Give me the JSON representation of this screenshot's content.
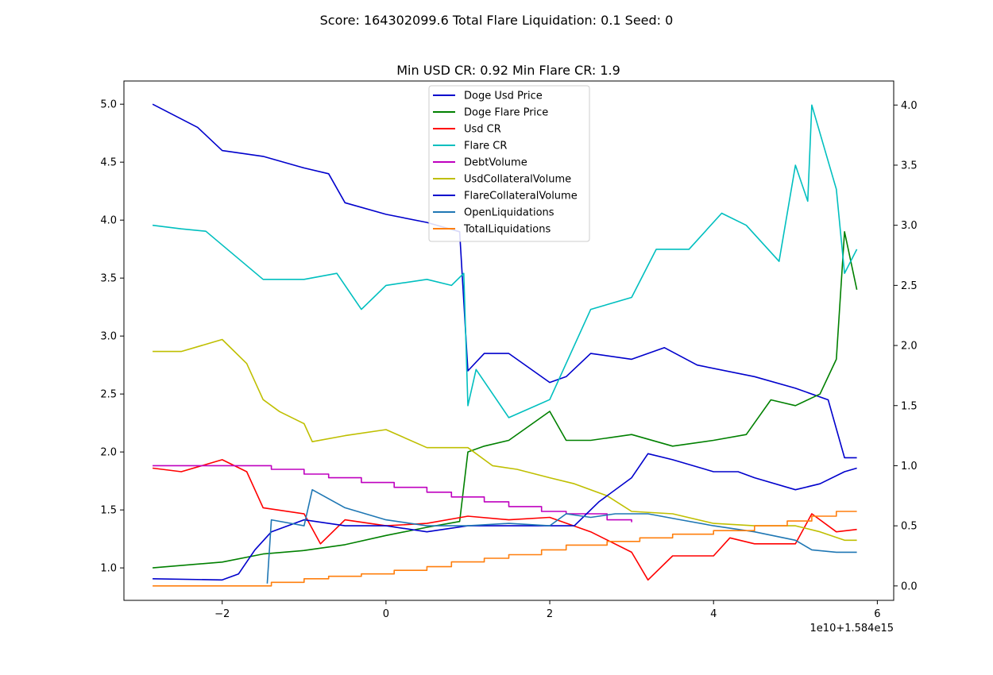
{
  "suptitle": "Score: 164302099.6 Total Flare Liquidation: 0.1 Seed: 0",
  "chart_data": {
    "type": "line",
    "title": "Min USD CR: 0.92 Min Flare CR: 1.9",
    "x_offset_label": "1e10+1.584e15",
    "xlim": [
      -3.2,
      6.2
    ],
    "ylim_left": [
      0.72,
      5.2
    ],
    "ylim_right": [
      -0.12,
      4.2
    ],
    "x_ticks": [
      -2,
      0,
      2,
      4,
      6
    ],
    "y_ticks_left": [
      1.0,
      1.5,
      2.0,
      2.5,
      3.0,
      3.5,
      4.0,
      4.5,
      5.0
    ],
    "y_ticks_right": [
      0.0,
      0.5,
      1.0,
      1.5,
      2.0,
      2.5,
      3.0,
      3.5,
      4.0
    ],
    "legend_position": "upper center",
    "series": [
      {
        "name": "Doge Usd Price",
        "color": "#0000cc",
        "axis": "left",
        "x": [
          -2.85,
          -2.3,
          -2.0,
          -1.5,
          -1.0,
          -0.7,
          -0.5,
          0.0,
          0.5,
          0.9,
          1.0,
          1.2,
          1.5,
          2.0,
          2.2,
          2.5,
          3.0,
          3.4,
          3.8,
          4.5,
          5.0,
          5.4,
          5.6,
          5.75
        ],
        "y": [
          5.0,
          4.8,
          4.6,
          4.55,
          4.45,
          4.4,
          4.15,
          4.05,
          3.98,
          3.9,
          2.7,
          2.85,
          2.85,
          2.6,
          2.65,
          2.85,
          2.8,
          2.9,
          2.75,
          2.65,
          2.55,
          2.45,
          1.95,
          1.95
        ]
      },
      {
        "name": "Doge Flare Price",
        "color": "#008000",
        "axis": "left",
        "x": [
          -2.85,
          -2.0,
          -1.5,
          -1.0,
          -0.5,
          0.0,
          0.5,
          0.9,
          1.0,
          1.2,
          1.5,
          2.0,
          2.2,
          2.5,
          3.0,
          3.5,
          4.0,
          4.4,
          4.7,
          5.0,
          5.3,
          5.5,
          5.6,
          5.75
        ],
        "y": [
          1.0,
          1.05,
          1.12,
          1.15,
          1.2,
          1.28,
          1.35,
          1.4,
          2.0,
          2.05,
          2.1,
          2.35,
          2.1,
          2.1,
          2.15,
          2.05,
          2.1,
          2.15,
          2.45,
          2.4,
          2.5,
          2.8,
          3.9,
          3.4
        ]
      },
      {
        "name": "Usd CR",
        "color": "#ff0000",
        "axis": "right",
        "x": [
          -2.85,
          -2.5,
          -2.0,
          -1.7,
          -1.5,
          -1.0,
          -0.8,
          -0.5,
          0.0,
          0.5,
          1.0,
          1.5,
          2.0,
          2.5,
          3.0,
          3.2,
          3.5,
          4.0,
          4.2,
          4.5,
          5.0,
          5.2,
          5.5,
          5.75
        ],
        "y": [
          0.98,
          0.95,
          1.05,
          0.95,
          0.65,
          0.6,
          0.35,
          0.55,
          0.5,
          0.52,
          0.58,
          0.55,
          0.57,
          0.45,
          0.28,
          0.05,
          0.25,
          0.25,
          0.4,
          0.35,
          0.35,
          0.6,
          0.45,
          0.47
        ]
      },
      {
        "name": "Flare CR",
        "color": "#00bfbf",
        "axis": "right",
        "x": [
          -2.85,
          -2.5,
          -2.2,
          -1.5,
          -1.0,
          -0.6,
          -0.3,
          0.0,
          0.5,
          0.8,
          0.95,
          1.0,
          1.1,
          1.5,
          2.0,
          2.5,
          3.0,
          3.3,
          3.7,
          4.1,
          4.4,
          4.8,
          5.0,
          5.15,
          5.2,
          5.5,
          5.6,
          5.75
        ],
        "y": [
          3.0,
          2.97,
          2.95,
          2.55,
          2.55,
          2.6,
          2.3,
          2.5,
          2.55,
          2.5,
          2.6,
          1.5,
          1.8,
          1.4,
          1.55,
          2.3,
          2.4,
          2.8,
          2.8,
          3.1,
          3.0,
          2.7,
          3.5,
          3.2,
          4.0,
          3.3,
          2.6,
          2.8
        ]
      },
      {
        "name": "DebtVolume",
        "color": "#bf00bf",
        "axis": "right",
        "step": true,
        "x": [
          -2.85,
          -2.0,
          -1.4,
          -1.0,
          -0.7,
          -0.3,
          0.1,
          0.5,
          0.8,
          1.2,
          1.5,
          1.9,
          2.2,
          2.7,
          3.0
        ],
        "y": [
          1.0,
          1.0,
          0.97,
          0.93,
          0.9,
          0.86,
          0.82,
          0.78,
          0.74,
          0.7,
          0.66,
          0.62,
          0.6,
          0.55,
          0.53
        ]
      },
      {
        "name": "UsdCollateralVolume",
        "color": "#bfbf00",
        "axis": "right",
        "x": [
          -2.85,
          -2.5,
          -2.0,
          -1.7,
          -1.5,
          -1.3,
          -1.0,
          -0.9,
          -0.5,
          0.0,
          0.5,
          1.0,
          1.3,
          1.6,
          2.0,
          2.3,
          2.7,
          3.0,
          3.5,
          4.0,
          4.5,
          5.0,
          5.3,
          5.6,
          5.75
        ],
        "y": [
          1.95,
          1.95,
          2.05,
          1.85,
          1.55,
          1.45,
          1.35,
          1.2,
          1.25,
          1.3,
          1.15,
          1.15,
          1.0,
          0.97,
          0.9,
          0.85,
          0.75,
          0.62,
          0.6,
          0.52,
          0.5,
          0.5,
          0.45,
          0.38,
          0.38
        ]
      },
      {
        "name": "FlareCollateralVolume",
        "color": "#0000cc",
        "axis": "right",
        "x": [
          -2.85,
          -2.0,
          -1.8,
          -1.6,
          -1.4,
          -1.0,
          -0.5,
          0.0,
          0.5,
          1.0,
          1.5,
          2.0,
          2.3,
          2.6,
          3.0,
          3.2,
          3.5,
          4.0,
          4.3,
          4.5,
          5.0,
          5.3,
          5.6,
          5.75
        ],
        "y": [
          0.06,
          0.05,
          0.1,
          0.3,
          0.45,
          0.55,
          0.5,
          0.5,
          0.45,
          0.5,
          0.5,
          0.5,
          0.5,
          0.7,
          0.9,
          1.1,
          1.05,
          0.95,
          0.95,
          0.9,
          0.8,
          0.85,
          0.95,
          0.98
        ]
      },
      {
        "name": "OpenLiquidations",
        "color": "#1f77b4",
        "axis": "right",
        "x": [
          -1.45,
          -1.4,
          -1.0,
          -0.9,
          -0.5,
          0.0,
          0.5,
          1.0,
          1.5,
          2.0,
          2.2,
          2.5,
          2.8,
          3.2,
          3.6,
          4.0,
          4.5,
          5.0,
          5.2,
          5.5,
          5.75
        ],
        "y": [
          0.02,
          0.55,
          0.5,
          0.8,
          0.65,
          0.55,
          0.5,
          0.5,
          0.52,
          0.5,
          0.6,
          0.57,
          0.6,
          0.6,
          0.55,
          0.5,
          0.45,
          0.38,
          0.3,
          0.28,
          0.28
        ]
      },
      {
        "name": "TotalLiquidations",
        "color": "#ff7f0e",
        "axis": "right",
        "step": true,
        "x": [
          -2.85,
          -1.4,
          -1.0,
          -0.7,
          -0.3,
          0.1,
          0.5,
          0.8,
          1.2,
          1.5,
          1.9,
          2.2,
          2.7,
          3.1,
          3.5,
          4.0,
          4.5,
          4.9,
          5.2,
          5.5,
          5.75
        ],
        "y": [
          0.0,
          0.03,
          0.06,
          0.08,
          0.1,
          0.13,
          0.16,
          0.2,
          0.23,
          0.26,
          0.3,
          0.34,
          0.37,
          0.4,
          0.43,
          0.46,
          0.5,
          0.54,
          0.58,
          0.62,
          0.62
        ]
      }
    ]
  }
}
